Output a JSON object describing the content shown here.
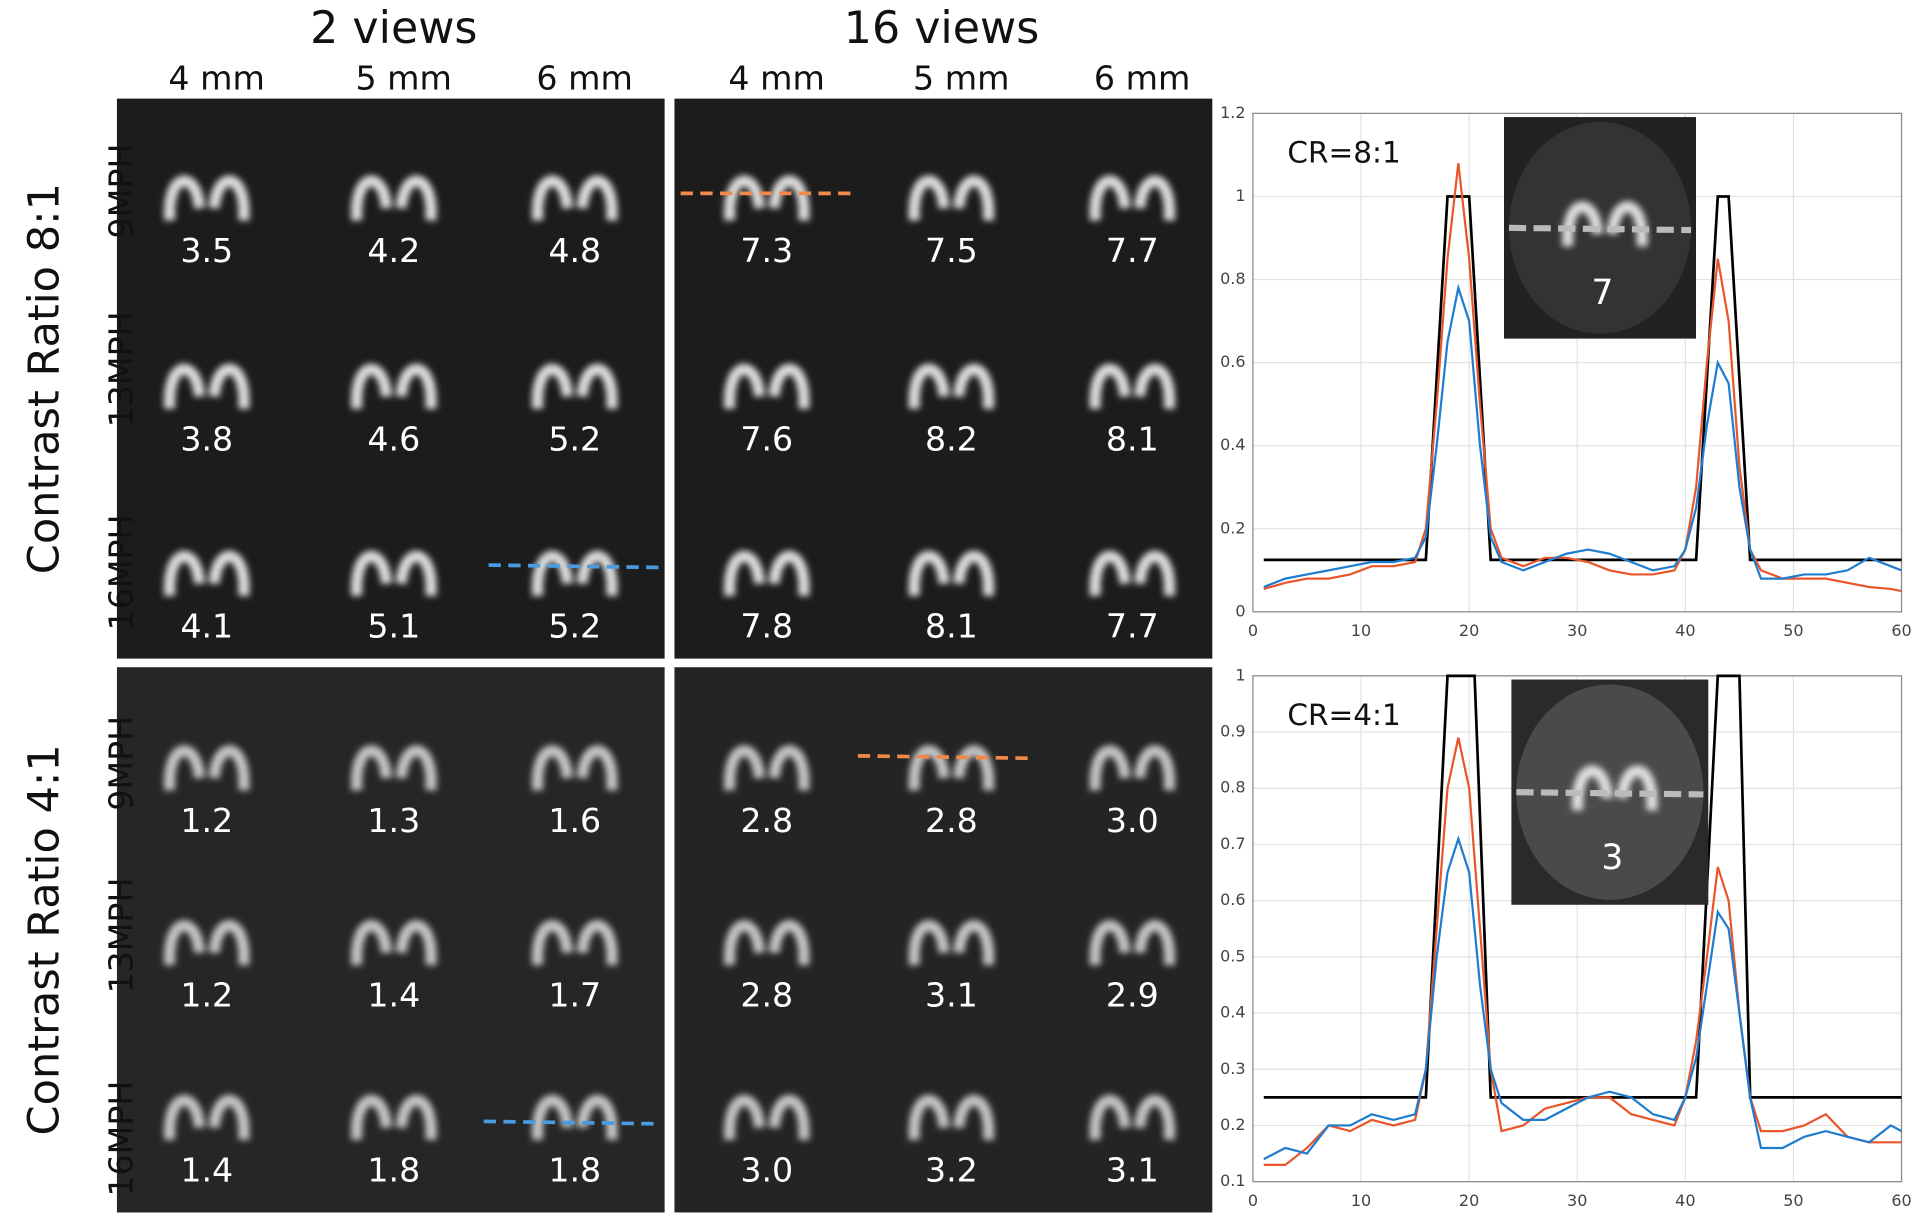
{
  "header": {
    "group_titles": [
      "2 views",
      "16 views"
    ],
    "column_labels": [
      "4 mm",
      "5 mm",
      "6 mm",
      "4 mm",
      "5 mm",
      "6 mm"
    ]
  },
  "panels": [
    {
      "label": "Contrast Ratio 8:1",
      "row_labels": [
        "9MPH",
        "13MPH",
        "16MPH"
      ],
      "values": [
        [
          "3.5",
          "4.2",
          "4.8",
          "7.3",
          "7.5",
          "7.7"
        ],
        [
          "3.8",
          "4.6",
          "5.2",
          "7.6",
          "8.2",
          "8.1"
        ],
        [
          "4.1",
          "5.1",
          "5.2",
          "7.8",
          "8.1",
          "7.7"
        ]
      ]
    },
    {
      "label": "Contrast Ratio 4:1",
      "row_labels": [
        "9MPH",
        "13MPH",
        "16MPH"
      ],
      "values": [
        [
          "1.2",
          "1.3",
          "1.6",
          "2.8",
          "2.8",
          "3.0"
        ],
        [
          "1.2",
          "1.4",
          "1.7",
          "2.8",
          "3.1",
          "2.9"
        ],
        [
          "1.4",
          "1.8",
          "1.8",
          "3.0",
          "3.2",
          "3.1"
        ]
      ]
    }
  ],
  "chart_data": [
    {
      "type": "line",
      "annotation": "CR=8:1",
      "inset_label": "7",
      "xlim": [
        0,
        60
      ],
      "xticks": [
        0,
        10,
        20,
        30,
        40,
        50,
        60
      ],
      "ylim": [
        0,
        1.2
      ],
      "yticks": [
        0,
        0.2,
        0.4,
        0.6,
        0.8,
        1,
        1.2
      ],
      "grid": true,
      "series": [
        {
          "color": "#000000",
          "x": [
            1,
            16,
            18,
            20,
            22,
            41,
            43,
            44,
            46,
            60
          ],
          "values": [
            0.125,
            0.125,
            1,
            1,
            0.125,
            0.125,
            1,
            1,
            0.125,
            0.125
          ]
        },
        {
          "color": "#e8562a",
          "x": [
            1,
            3,
            5,
            7,
            9,
            11,
            13,
            15,
            16,
            17,
            18,
            19,
            20,
            21,
            22,
            23,
            25,
            27,
            29,
            31,
            33,
            35,
            37,
            39,
            40,
            41,
            42,
            43,
            44,
            45,
            46,
            47,
            49,
            51,
            53,
            55,
            57,
            59,
            60
          ],
          "values": [
            0.055,
            0.07,
            0.08,
            0.08,
            0.09,
            0.11,
            0.11,
            0.12,
            0.2,
            0.5,
            0.85,
            1.08,
            0.85,
            0.5,
            0.2,
            0.13,
            0.11,
            0.13,
            0.13,
            0.12,
            0.1,
            0.09,
            0.09,
            0.1,
            0.15,
            0.3,
            0.6,
            0.85,
            0.7,
            0.35,
            0.15,
            0.1,
            0.08,
            0.08,
            0.08,
            0.07,
            0.06,
            0.055,
            0.05
          ]
        },
        {
          "color": "#1f7ccf",
          "x": [
            1,
            3,
            5,
            7,
            9,
            11,
            13,
            15,
            16,
            17,
            18,
            19,
            20,
            21,
            22,
            23,
            25,
            27,
            29,
            31,
            33,
            35,
            37,
            39,
            40,
            41,
            42,
            43,
            44,
            45,
            46,
            47,
            49,
            51,
            53,
            55,
            57,
            59,
            60
          ],
          "values": [
            0.06,
            0.08,
            0.09,
            0.1,
            0.11,
            0.12,
            0.12,
            0.13,
            0.18,
            0.4,
            0.65,
            0.78,
            0.7,
            0.4,
            0.18,
            0.12,
            0.1,
            0.12,
            0.14,
            0.15,
            0.14,
            0.12,
            0.1,
            0.11,
            0.15,
            0.25,
            0.45,
            0.6,
            0.55,
            0.3,
            0.15,
            0.08,
            0.08,
            0.09,
            0.09,
            0.1,
            0.13,
            0.11,
            0.1
          ]
        }
      ]
    },
    {
      "type": "line",
      "annotation": "CR=4:1",
      "inset_label": "3",
      "xlim": [
        0,
        60
      ],
      "xticks": [
        0,
        10,
        20,
        30,
        40,
        50,
        60
      ],
      "ylim": [
        0.1,
        1
      ],
      "yticks": [
        0.1,
        0.2,
        0.3,
        0.4,
        0.5,
        0.6,
        0.7,
        0.8,
        0.9,
        1
      ],
      "grid": true,
      "series": [
        {
          "color": "#000000",
          "x": [
            1,
            16,
            18,
            20.5,
            22,
            41,
            43,
            45,
            46,
            60
          ],
          "values": [
            0.25,
            0.25,
            1,
            1,
            0.25,
            0.25,
            1,
            1,
            0.25,
            0.25
          ]
        },
        {
          "color": "#e8562a",
          "x": [
            1,
            3,
            5,
            7,
            9,
            11,
            13,
            15,
            16,
            17,
            18,
            19,
            20,
            21,
            22,
            23,
            25,
            27,
            29,
            31,
            33,
            35,
            37,
            39,
            40,
            41,
            42,
            43,
            44,
            45,
            46,
            47,
            49,
            51,
            53,
            55,
            57,
            59,
            60
          ],
          "values": [
            0.13,
            0.13,
            0.16,
            0.2,
            0.19,
            0.21,
            0.2,
            0.21,
            0.3,
            0.55,
            0.8,
            0.89,
            0.8,
            0.55,
            0.3,
            0.19,
            0.2,
            0.23,
            0.24,
            0.25,
            0.25,
            0.22,
            0.21,
            0.2,
            0.25,
            0.35,
            0.5,
            0.66,
            0.6,
            0.4,
            0.25,
            0.19,
            0.19,
            0.2,
            0.22,
            0.18,
            0.17,
            0.17,
            0.17
          ]
        },
        {
          "color": "#1f7ccf",
          "x": [
            1,
            3,
            5,
            7,
            9,
            11,
            13,
            15,
            16,
            17,
            18,
            19,
            20,
            21,
            22,
            23,
            25,
            27,
            29,
            31,
            33,
            35,
            37,
            39,
            40,
            41,
            42,
            43,
            44,
            45,
            46,
            47,
            49,
            51,
            53,
            55,
            57,
            59,
            60
          ],
          "values": [
            0.14,
            0.16,
            0.15,
            0.2,
            0.2,
            0.22,
            0.21,
            0.22,
            0.3,
            0.5,
            0.65,
            0.71,
            0.65,
            0.45,
            0.3,
            0.24,
            0.21,
            0.21,
            0.23,
            0.25,
            0.26,
            0.25,
            0.22,
            0.21,
            0.25,
            0.32,
            0.45,
            0.58,
            0.55,
            0.4,
            0.25,
            0.16,
            0.16,
            0.18,
            0.19,
            0.18,
            0.17,
            0.2,
            0.19
          ]
        }
      ]
    }
  ]
}
